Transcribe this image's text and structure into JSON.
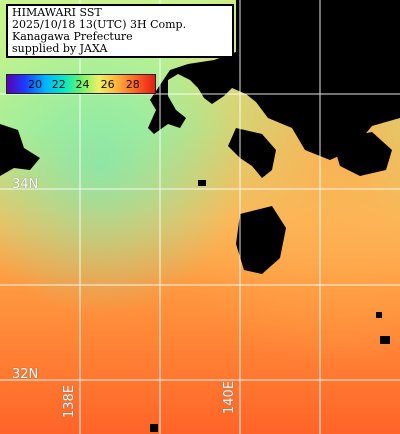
{
  "title": {
    "lines": [
      "HIMAWARI SST",
      "2025/10/18 13(UTC) 3H Comp.",
      "Kanagawa Prefecture",
      "supplied by JAXA"
    ]
  },
  "colorbar": {
    "ticks": [
      "20",
      "22",
      "24",
      "26",
      "28"
    ],
    "colors": [
      "#5a00b4",
      "#1b3cff",
      "#00b4ff",
      "#00e6c8",
      "#6cf26c",
      "#f0f064",
      "#ffb43c",
      "#ff6a28",
      "#e61e14"
    ]
  },
  "graticule": {
    "latitudes": [
      "34N",
      "32N"
    ],
    "longitudes": [
      "138E",
      "140E"
    ]
  },
  "colors": {
    "land_mask": "#000000",
    "grid": "#ffffff",
    "cool_water": "#b4f08c",
    "warm_water": "#ff7a30"
  }
}
